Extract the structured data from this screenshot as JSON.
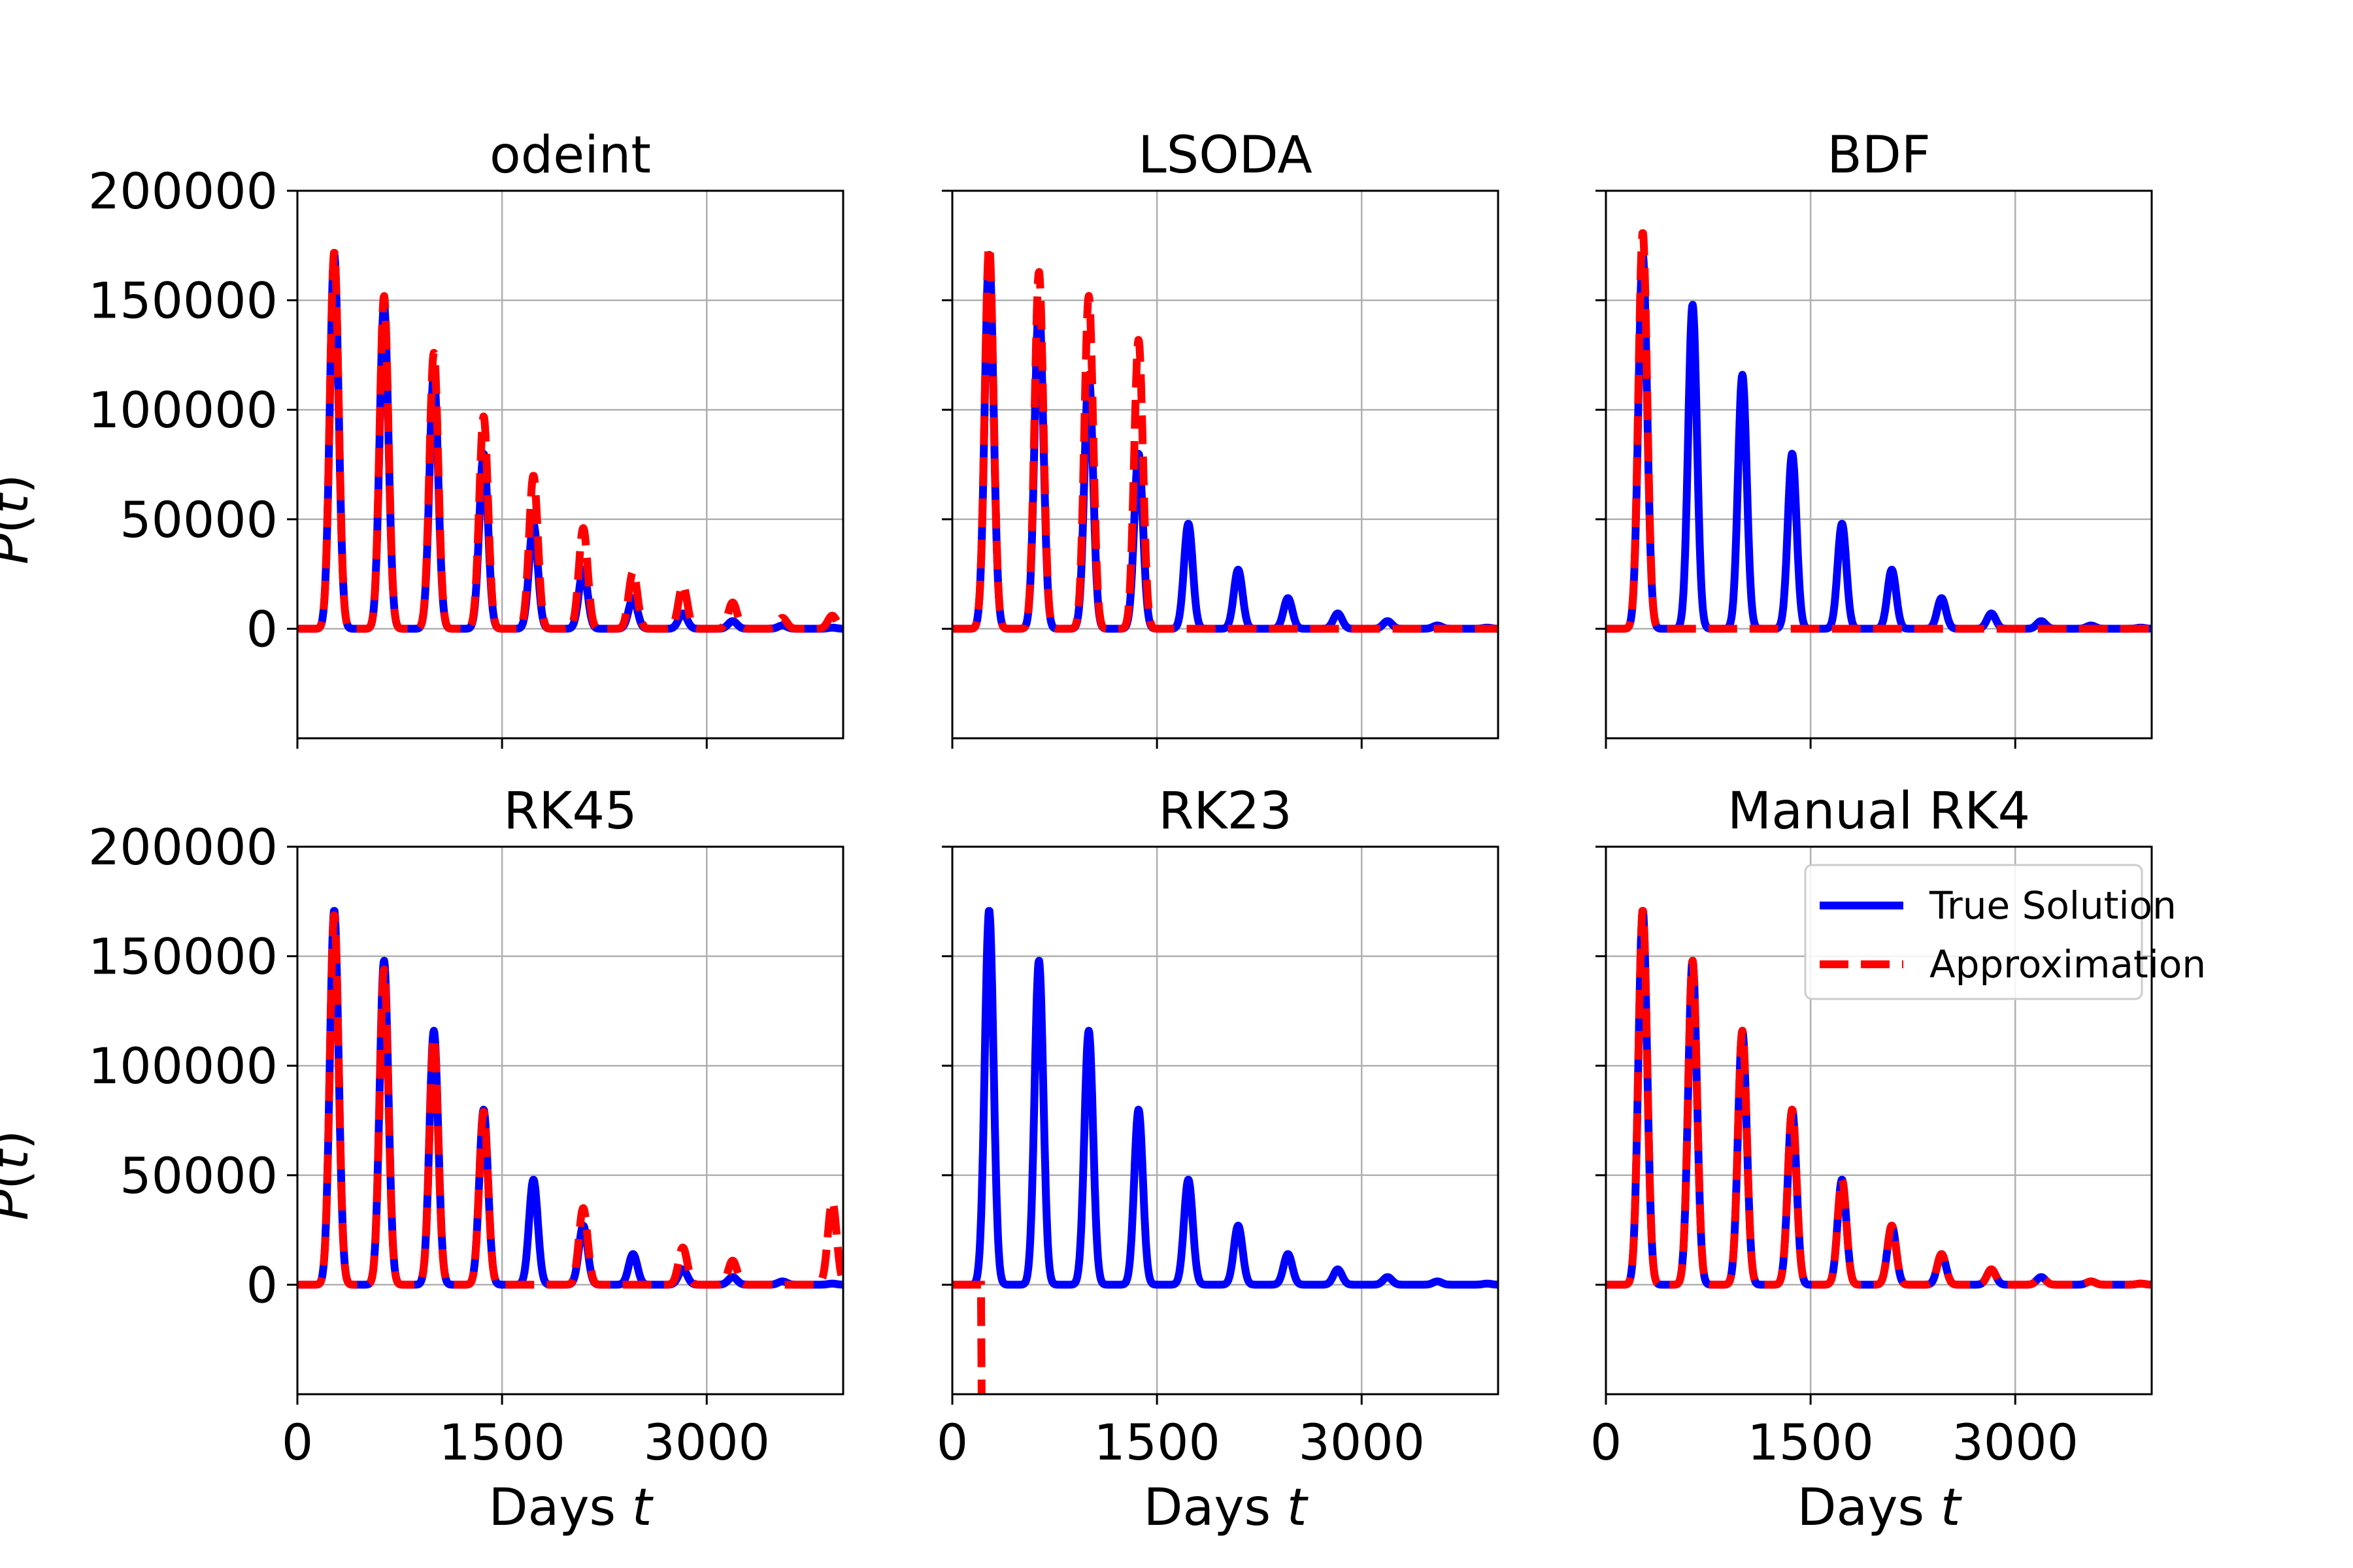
{
  "chart_data": {
    "type": "line",
    "xlabel_prefix": "Days ",
    "xlabel_var": "t",
    "ylabel_prefix": "P(",
    "ylabel_var": "t",
    "ylabel_suffix": ")",
    "xlim": [
      0,
      4000
    ],
    "ylim": [
      -50000,
      200000
    ],
    "xticks": [
      0,
      1500,
      3000
    ],
    "yticks": [
      0,
      50000,
      100000,
      150000,
      200000
    ],
    "legend": {
      "position": "upper right",
      "entries": [
        "True Solution",
        "Approximation"
      ]
    },
    "colors": {
      "true": "#0000ff",
      "approx": "#ff0000"
    },
    "peak_days": [
      270,
      635,
      1000,
      1365,
      1730,
      2095,
      2460,
      2825,
      3190,
      3555,
      3920
    ],
    "true_solution": [
      171000,
      148000,
      116000,
      80000,
      48000,
      27000,
      14000,
      7000,
      3500,
      1500,
      500
    ],
    "panels": [
      {
        "title": "odeint",
        "approx_peak_days": [
          270,
          635,
          1000,
          1365,
          1730,
          2095,
          2460,
          2825,
          3190,
          3555,
          3920
        ],
        "approx": [
          172000,
          152000,
          126000,
          97000,
          70000,
          46000,
          26000,
          20000,
          12000,
          5000,
          6000
        ],
        "approx_tail": null
      },
      {
        "title": "LSODA",
        "approx_peak_days": [
          270,
          635,
          1000,
          1365
        ],
        "approx": [
          175000,
          163000,
          152000,
          132000
        ],
        "approx_tail": null
      },
      {
        "title": "BDF",
        "approx_peak_days": [
          270
        ],
        "approx": [
          181000
        ],
        "approx_tail": null
      },
      {
        "title": "RK45",
        "approx_peak_days": [
          270,
          635,
          1000,
          1365,
          1730,
          2095,
          2460,
          2825,
          3190,
          3555,
          3920
        ],
        "approx": [
          169000,
          144000,
          113000,
          79000,
          0,
          35000,
          0,
          17000,
          11000,
          0,
          38000
        ],
        "approx_tail": null
      },
      {
        "title": "RK23",
        "approx_peak_days": [],
        "approx": [],
        "approx_tail": {
          "start_day": 210,
          "end_value": -50000
        }
      },
      {
        "title": "Manual RK4",
        "approx_peak_days": [
          270,
          635,
          1000,
          1365,
          1730,
          2095,
          2460,
          2825,
          3190,
          3555,
          3920
        ],
        "approx": [
          171000,
          148000,
          116000,
          80000,
          48000,
          27000,
          14000,
          7000,
          3500,
          1500,
          500
        ],
        "approx_tail": null,
        "show_legend": true
      }
    ]
  }
}
